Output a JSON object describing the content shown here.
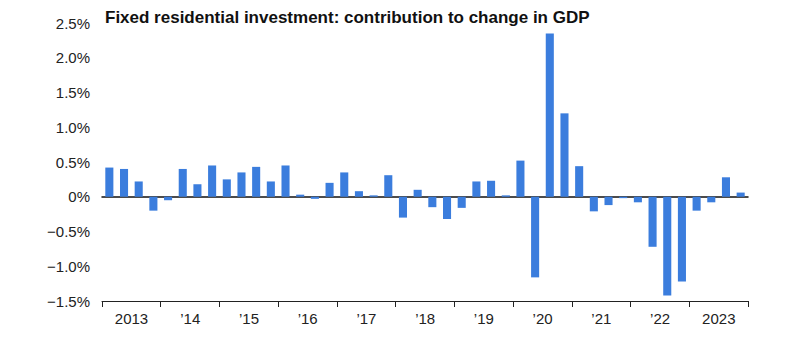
{
  "chart_data": {
    "type": "bar",
    "title": "Fixed residential investment: contribution to change in GDP",
    "categories": [
      null,
      "2013",
      null,
      null,
      null,
      "’14",
      null,
      null,
      null,
      "’15",
      null,
      null,
      null,
      "’16",
      null,
      null,
      null,
      "’17",
      null,
      null,
      null,
      "’18",
      null,
      null,
      null,
      "’19",
      null,
      null,
      null,
      "’20",
      null,
      null,
      null,
      "’21",
      null,
      null,
      null,
      "’22",
      null,
      null,
      null,
      "2023",
      null,
      null
    ],
    "values": [
      0.42,
      0.4,
      0.22,
      -0.2,
      -0.05,
      0.4,
      0.18,
      0.45,
      0.25,
      0.35,
      0.43,
      0.22,
      0.45,
      0.03,
      -0.03,
      0.2,
      0.35,
      0.08,
      0.02,
      0.31,
      -0.3,
      0.1,
      -0.15,
      -0.32,
      -0.16,
      0.22,
      0.23,
      0.02,
      0.52,
      -1.16,
      2.35,
      1.2,
      0.44,
      -0.21,
      -0.12,
      -0.02,
      -0.08,
      -0.72,
      -1.42,
      -1.22,
      -0.2,
      -0.08,
      0.28,
      0.06
    ],
    "color": "#3b7ddd",
    "ylim": [
      -1.5,
      2.5
    ],
    "yticks": [
      {
        "value": -1.5,
        "label": "−1.5%"
      },
      {
        "value": -1.0,
        "label": "−1.0%"
      },
      {
        "value": -0.5,
        "label": "−0.5%"
      },
      {
        "value": 0,
        "label": "0%"
      },
      {
        "value": 0.5,
        "label": "0.5%"
      },
      {
        "value": 1.0,
        "label": "1.0%"
      },
      {
        "value": 1.5,
        "label": "1.5%"
      },
      {
        "value": 2.0,
        "label": "2.0%"
      },
      {
        "value": 2.5,
        "label": "2.5%"
      }
    ],
    "grid": false
  }
}
